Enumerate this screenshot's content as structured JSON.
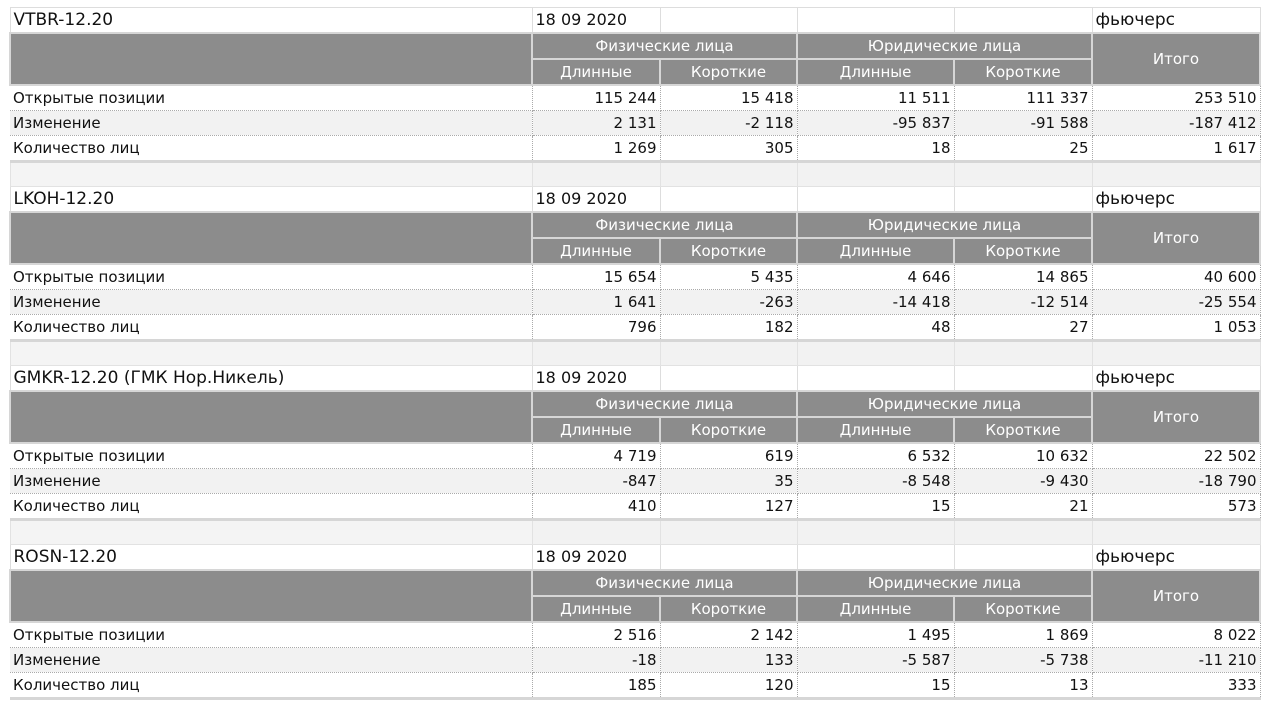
{
  "blocks": [
    {
      "ticker": "VTBR-12.20",
      "date": "18 09 2020",
      "type": "фьючерс",
      "group_individuals": "Физические лица",
      "group_legal": "Юридические лица",
      "long": "Длинные",
      "short": "Короткие",
      "total": "Итого",
      "rows": [
        {
          "label": "Открытые позиции",
          "values": [
            "115 244",
            "15 418",
            "11 511",
            "111 337",
            "253 510"
          ]
        },
        {
          "label": "Изменение",
          "values": [
            "2 131",
            "-2 118",
            "-95 837",
            "-91 588",
            "-187 412"
          ]
        },
        {
          "label": "Количество лиц",
          "values": [
            "1 269",
            "305",
            "18",
            "25",
            "1 617"
          ]
        }
      ]
    },
    {
      "ticker": "LKOH-12.20",
      "date": "18 09 2020",
      "type": "фьючерс",
      "group_individuals": "Физические лица",
      "group_legal": "Юридические лица",
      "long": "Длинные",
      "short": "Короткие",
      "total": "Итого",
      "rows": [
        {
          "label": "Открытые позиции",
          "values": [
            "15 654",
            "5 435",
            "4 646",
            "14 865",
            "40 600"
          ]
        },
        {
          "label": "Изменение",
          "values": [
            "1 641",
            "-263",
            "-14 418",
            "-12 514",
            "-25 554"
          ]
        },
        {
          "label": "Количество лиц",
          "values": [
            "796",
            "182",
            "48",
            "27",
            "1 053"
          ]
        }
      ]
    },
    {
      "ticker": "GMKR-12.20 (ГМК Нор.Никель)",
      "date": "18 09 2020",
      "type": "фьючерс",
      "group_individuals": "Физические лица",
      "group_legal": "Юридические лица",
      "long": "Длинные",
      "short": "Короткие",
      "total": "Итого",
      "rows": [
        {
          "label": "Открытые позиции",
          "values": [
            "4 719",
            "619",
            "6 532",
            "10 632",
            "22 502"
          ]
        },
        {
          "label": "Изменение",
          "values": [
            "-847",
            "35",
            "-8 548",
            "-9 430",
            "-18 790"
          ]
        },
        {
          "label": "Количество лиц",
          "values": [
            "410",
            "127",
            "15",
            "21",
            "573"
          ]
        }
      ]
    },
    {
      "ticker": "ROSN-12.20",
      "date": "18 09 2020",
      "type": "фьючерс",
      "group_individuals": "Физические лица",
      "group_legal": "Юридические лица",
      "long": "Длинные",
      "short": "Короткие",
      "total": "Итого",
      "rows": [
        {
          "label": "Открытые позиции",
          "values": [
            "2 516",
            "2 142",
            "1 495",
            "1 869",
            "8 022"
          ]
        },
        {
          "label": "Изменение",
          "values": [
            "-18",
            "133",
            "-5 587",
            "-5 738",
            "-11 210"
          ]
        },
        {
          "label": "Количество лиц",
          "values": [
            "185",
            "120",
            "15",
            "13",
            "333"
          ]
        }
      ]
    }
  ],
  "colors": {
    "header_bg": "#8c8c8c",
    "header_text": "#ffffff",
    "alt_row": "#f2f2f2"
  }
}
